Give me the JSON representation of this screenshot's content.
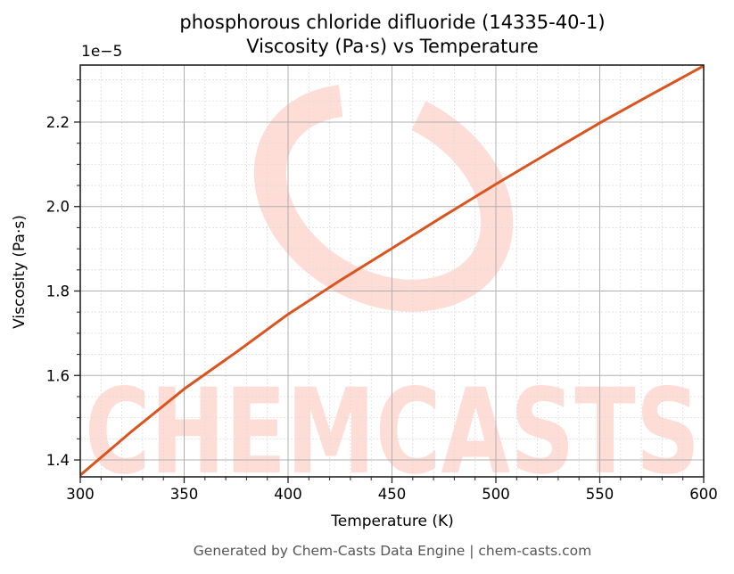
{
  "header": {
    "title_line1": "phosphorous chloride difluoride (14335-40-1)",
    "title_line2": "Viscosity (Pa·s) vs Temperature",
    "y_exponent": "1e−5"
  },
  "axes": {
    "xlabel": "Temperature (K)",
    "ylabel": "Viscosity (Pa·s)"
  },
  "footer": {
    "text": "Generated by Chem-Casts Data Engine | chem-casts.com"
  },
  "watermark": {
    "text": "CHEMCASTS",
    "color": "#FDDDD6"
  },
  "colors": {
    "line": "#D9541E",
    "grid_major": "#B0B0B0",
    "grid_minor": "#DDDDDD",
    "axis": "#222222"
  },
  "chart_data": {
    "type": "line",
    "title": "phosphorous chloride difluoride (14335-40-1) Viscosity (Pa·s) vs Temperature",
    "xlabel": "Temperature (K)",
    "ylabel": "Viscosity (Pa·s)",
    "y_scale_factor": "1e-5",
    "xlim": [
      300,
      600
    ],
    "ylim": [
      1.36,
      2.335
    ],
    "x_ticks": [
      300,
      350,
      400,
      450,
      500,
      550,
      600
    ],
    "y_ticks": [
      1.4,
      1.6,
      1.8,
      2.0,
      2.2
    ],
    "x_tick_labels": [
      "300",
      "350",
      "400",
      "450",
      "500",
      "550",
      "600"
    ],
    "y_tick_labels": [
      "1.4",
      "1.6",
      "1.8",
      "2.0",
      "2.2"
    ],
    "grid": true,
    "minor_grid": true,
    "legend": null,
    "series": [
      {
        "name": "Viscosity",
        "x": [
          300,
          325,
          350,
          375,
          400,
          425,
          450,
          475,
          500,
          525,
          550,
          575,
          600
        ],
        "values": [
          1.364,
          1.469,
          1.568,
          1.655,
          1.745,
          1.825,
          1.901,
          1.978,
          2.053,
          2.126,
          2.198,
          2.266,
          2.333
        ]
      }
    ]
  }
}
